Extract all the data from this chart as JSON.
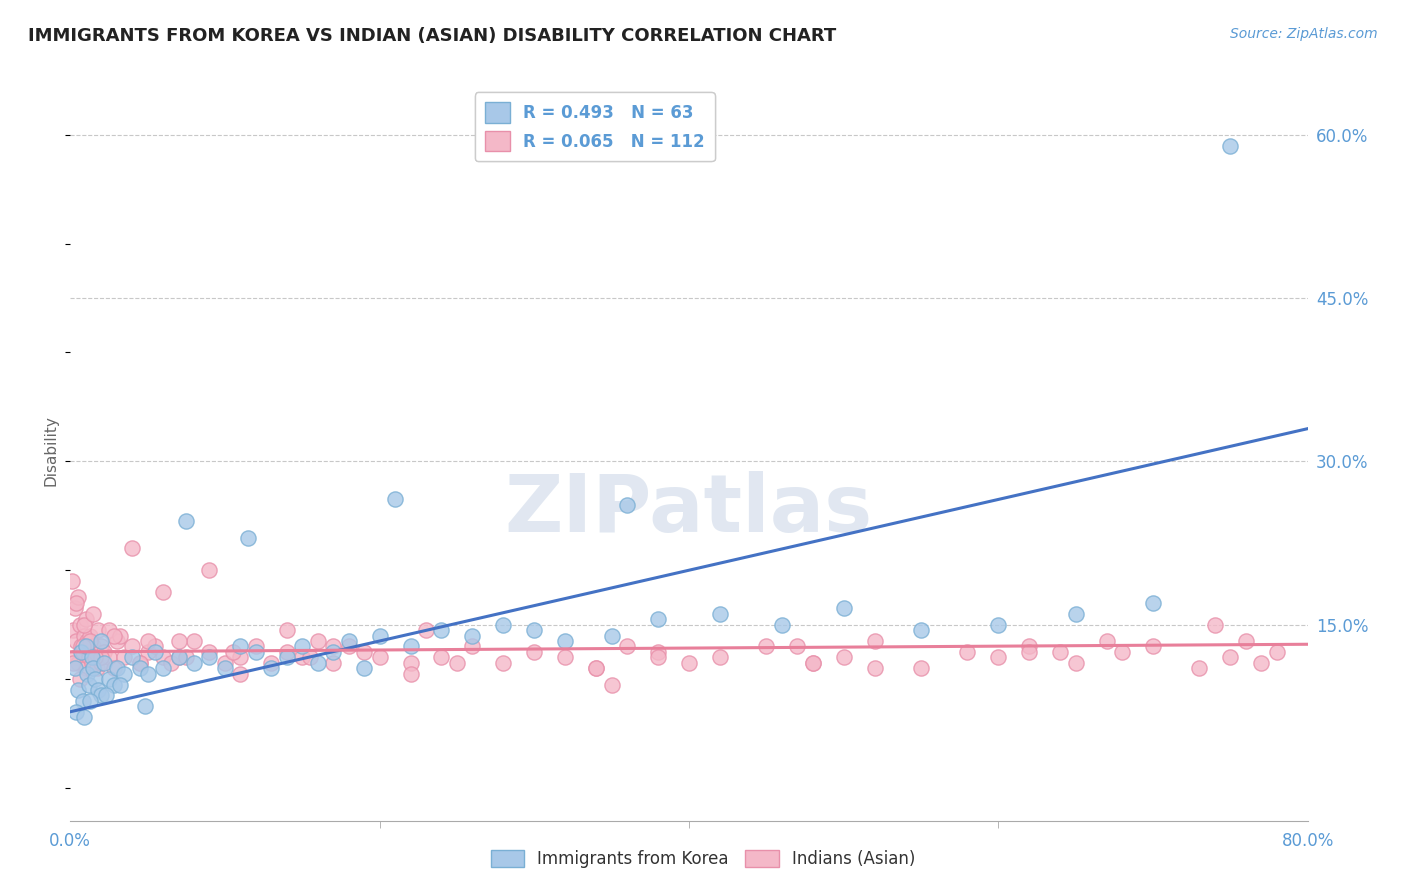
{
  "title": "IMMIGRANTS FROM KOREA VS INDIAN (ASIAN) DISABILITY CORRELATION CHART",
  "source_text": "Source: ZipAtlas.com",
  "ylabel": "Disability",
  "watermark": "ZIPatlas",
  "legend_blue_label": "R = 0.493   N = 63",
  "legend_pink_label": "R = 0.065   N = 112",
  "legend_blue_label2": "Immigrants from Korea",
  "legend_pink_label2": "Indians (Asian)",
  "blue_color": "#a8c8e8",
  "pink_color": "#f4b8c8",
  "blue_edge_color": "#7aafd4",
  "pink_edge_color": "#e890aa",
  "blue_line_color": "#4472c4",
  "pink_line_color": "#e87f9a",
  "title_color": "#222222",
  "axis_label_color": "#5b9bd5",
  "y_ticks_right": [
    15.0,
    30.0,
    45.0,
    60.0
  ],
  "blue_trend_x": [
    0.0,
    80.0
  ],
  "blue_trend_y_start": 7.0,
  "blue_trend_y_end": 33.0,
  "pink_trend_x": [
    0.0,
    80.0
  ],
  "pink_trend_y_start": 12.5,
  "pink_trend_y_end": 13.2,
  "xlim": [
    0.0,
    80.0
  ],
  "ylim": [
    -3.0,
    65.0
  ],
  "background_color": "#ffffff",
  "grid_color": "#c8c8c8",
  "watermark_color": "#cdd8e8",
  "watermark_alpha": 0.6,
  "blue_scatter_x": [
    0.3,
    0.5,
    0.7,
    0.8,
    1.0,
    1.1,
    1.2,
    1.4,
    1.5,
    1.6,
    1.8,
    2.0,
    2.0,
    2.2,
    2.5,
    2.8,
    3.0,
    3.5,
    4.0,
    4.5,
    5.0,
    5.5,
    6.0,
    7.0,
    8.0,
    9.0,
    10.0,
    11.0,
    12.0,
    13.0,
    14.0,
    15.0,
    16.0,
    17.0,
    18.0,
    19.0,
    20.0,
    22.0,
    24.0,
    26.0,
    28.0,
    30.0,
    32.0,
    35.0,
    38.0,
    42.0,
    46.0,
    50.0,
    55.0,
    60.0,
    65.0,
    70.0,
    0.4,
    0.9,
    1.3,
    2.3,
    3.2,
    4.8,
    7.5,
    11.5,
    21.0,
    36.0,
    75.0
  ],
  "blue_scatter_y": [
    11.0,
    9.0,
    12.5,
    8.0,
    13.0,
    10.5,
    9.5,
    12.0,
    11.0,
    10.0,
    9.0,
    13.5,
    8.5,
    11.5,
    10.0,
    9.5,
    11.0,
    10.5,
    12.0,
    11.0,
    10.5,
    12.5,
    11.0,
    12.0,
    11.5,
    12.0,
    11.0,
    13.0,
    12.5,
    11.0,
    12.0,
    13.0,
    11.5,
    12.5,
    13.5,
    11.0,
    14.0,
    13.0,
    14.5,
    14.0,
    15.0,
    14.5,
    13.5,
    14.0,
    15.5,
    16.0,
    15.0,
    16.5,
    14.5,
    15.0,
    16.0,
    17.0,
    7.0,
    6.5,
    8.0,
    8.5,
    9.5,
    7.5,
    24.5,
    23.0,
    26.5,
    26.0,
    59.0
  ],
  "pink_scatter_x": [
    0.1,
    0.2,
    0.3,
    0.3,
    0.4,
    0.5,
    0.5,
    0.6,
    0.7,
    0.8,
    0.9,
    1.0,
    1.0,
    1.1,
    1.2,
    1.3,
    1.4,
    1.5,
    1.6,
    1.7,
    1.8,
    2.0,
    2.0,
    2.2,
    2.5,
    2.8,
    3.0,
    3.5,
    4.0,
    4.5,
    5.0,
    5.5,
    6.0,
    6.5,
    7.0,
    8.0,
    9.0,
    10.0,
    11.0,
    12.0,
    13.0,
    14.0,
    15.0,
    16.0,
    17.0,
    18.0,
    19.0,
    20.0,
    22.0,
    24.0,
    26.0,
    28.0,
    30.0,
    32.0,
    34.0,
    36.0,
    38.0,
    40.0,
    42.0,
    45.0,
    48.0,
    50.0,
    52.0,
    55.0,
    58.0,
    60.0,
    62.0,
    65.0,
    68.0,
    70.0,
    73.0,
    75.0,
    76.0,
    77.0,
    78.0,
    0.4,
    0.9,
    1.5,
    2.5,
    4.0,
    6.0,
    9.0,
    14.0,
    22.0,
    35.0,
    48.0,
    62.0,
    74.0,
    0.6,
    1.3,
    2.0,
    3.2,
    5.0,
    7.5,
    11.0,
    17.0,
    25.0,
    38.0,
    52.0,
    67.0,
    0.2,
    0.8,
    1.6,
    2.8,
    4.5,
    7.0,
    10.5,
    15.5,
    23.0,
    34.0,
    47.0,
    64.0
  ],
  "pink_scatter_y": [
    19.0,
    14.5,
    16.5,
    12.0,
    13.5,
    17.5,
    11.5,
    15.0,
    13.0,
    12.5,
    14.0,
    11.0,
    15.5,
    13.5,
    12.0,
    14.0,
    11.5,
    13.0,
    12.5,
    11.0,
    14.5,
    13.0,
    11.5,
    12.5,
    12.0,
    11.0,
    13.5,
    12.0,
    13.0,
    11.5,
    12.5,
    13.0,
    12.0,
    11.5,
    12.0,
    13.5,
    12.5,
    11.5,
    12.0,
    13.0,
    11.5,
    12.5,
    12.0,
    13.5,
    11.5,
    13.0,
    12.5,
    12.0,
    11.5,
    12.0,
    13.0,
    11.5,
    12.5,
    12.0,
    11.0,
    13.0,
    12.5,
    11.5,
    12.0,
    13.0,
    11.5,
    12.0,
    13.5,
    11.0,
    12.5,
    12.0,
    13.0,
    11.5,
    12.5,
    13.0,
    11.0,
    12.0,
    13.5,
    11.5,
    12.5,
    17.0,
    15.0,
    16.0,
    14.5,
    22.0,
    18.0,
    20.0,
    14.5,
    10.5,
    9.5,
    11.5,
    12.5,
    15.0,
    10.0,
    13.5,
    12.0,
    14.0,
    13.5,
    12.0,
    10.5,
    13.0,
    11.5,
    12.0,
    11.0,
    13.5,
    11.5,
    13.0,
    12.0,
    14.0,
    11.5,
    13.5,
    12.5,
    12.0,
    14.5,
    11.0,
    13.0,
    12.5
  ]
}
